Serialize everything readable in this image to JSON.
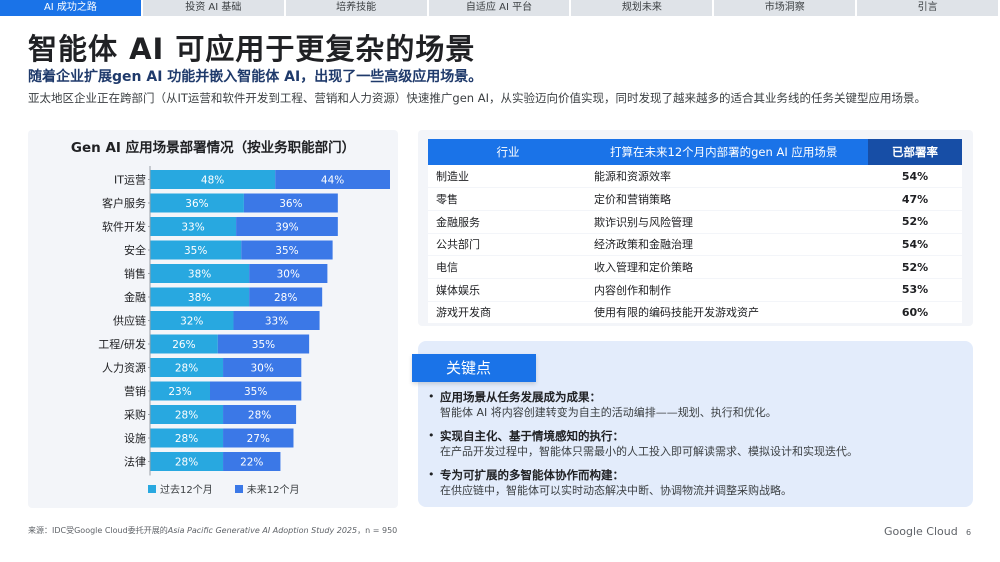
{
  "nav": {
    "tabs": [
      "AI 成功之路",
      "投资 AI 基础",
      "培养技能",
      "自适应 AI 平台",
      "规划未来",
      "市场洞察",
      "引言"
    ],
    "active_index": 0
  },
  "header": {
    "title": "智能体 AI 可应用于更复杂的场景",
    "subtitle": "随着企业扩展gen AI 功能并嵌入智能体 AI，出现了一些高级应用场景。",
    "intro": "亚太地区企业正在跨部门（从IT运营和软件开发到工程、营销和人力资源）快速推广gen AI，从实验迈向价值实现，同时发现了越来越多的适合其业务线的任务关键型应用场景。"
  },
  "chart_data": {
    "type": "bar",
    "orientation": "horizontal-stacked",
    "title": "Gen AI 应用场景部署情况（按业务职能部门）",
    "categories": [
      "IT运营",
      "客户服务",
      "软件开发",
      "安全",
      "销售",
      "金融",
      "供应链",
      "工程/研发",
      "人力资源",
      "营销",
      "采购",
      "设施",
      "法律"
    ],
    "series": [
      {
        "name": "过去12个月",
        "color": "#28a8e0",
        "values": [
          48,
          36,
          33,
          35,
          38,
          38,
          32,
          26,
          28,
          23,
          28,
          28,
          28
        ]
      },
      {
        "name": "未来12个月",
        "color": "#3b78e7",
        "values": [
          44,
          36,
          39,
          35,
          30,
          28,
          33,
          35,
          30,
          35,
          28,
          27,
          22
        ]
      }
    ],
    "value_suffix": "%",
    "xlim": [
      0,
      92
    ]
  },
  "table": {
    "headers": [
      "行业",
      "打算在未来12个月内部署的gen AI 应用场景",
      "已部署率"
    ],
    "rows": [
      {
        "industry": "制造业",
        "use_case": "能源和资源效率",
        "rate": "54%"
      },
      {
        "industry": "零售",
        "use_case": "定价和营销策略",
        "rate": "47%"
      },
      {
        "industry": "金融服务",
        "use_case": "欺诈识别与风险管理",
        "rate": "52%"
      },
      {
        "industry": "公共部门",
        "use_case": "经济政策和金融治理",
        "rate": "54%"
      },
      {
        "industry": "电信",
        "use_case": "收入管理和定价策略",
        "rate": "52%"
      },
      {
        "industry": "媒体娱乐",
        "use_case": "内容创作和制作",
        "rate": "53%"
      },
      {
        "industry": "游戏开发商",
        "use_case": "使用有限的编码技能开发游戏资产",
        "rate": "60%"
      }
    ]
  },
  "key_points": {
    "heading": "关键点",
    "items": [
      {
        "title": "应用场景从任务发展成为成果：",
        "body": "智能体 AI 将内容创建转变为自主的活动编排——规划、执行和优化。"
      },
      {
        "title": "实现自主化、基于情境感知的执行：",
        "body": "在产品开发过程中，智能体只需最小的人工投入即可解读需求、模拟设计和实现迭代。"
      },
      {
        "title": "专为可扩展的多智能体协作而构建：",
        "body": "在供应链中，智能体可以实时动态解决中断、协调物流并调整采购战略。"
      }
    ]
  },
  "footer": {
    "source_prefix": "来源：IDC受Google Cloud委托开展的",
    "source_study": "Asia Pacific Generative AI Adoption Study 2025",
    "source_suffix": "，n = 950",
    "brand": "Google Cloud",
    "page": "6"
  }
}
